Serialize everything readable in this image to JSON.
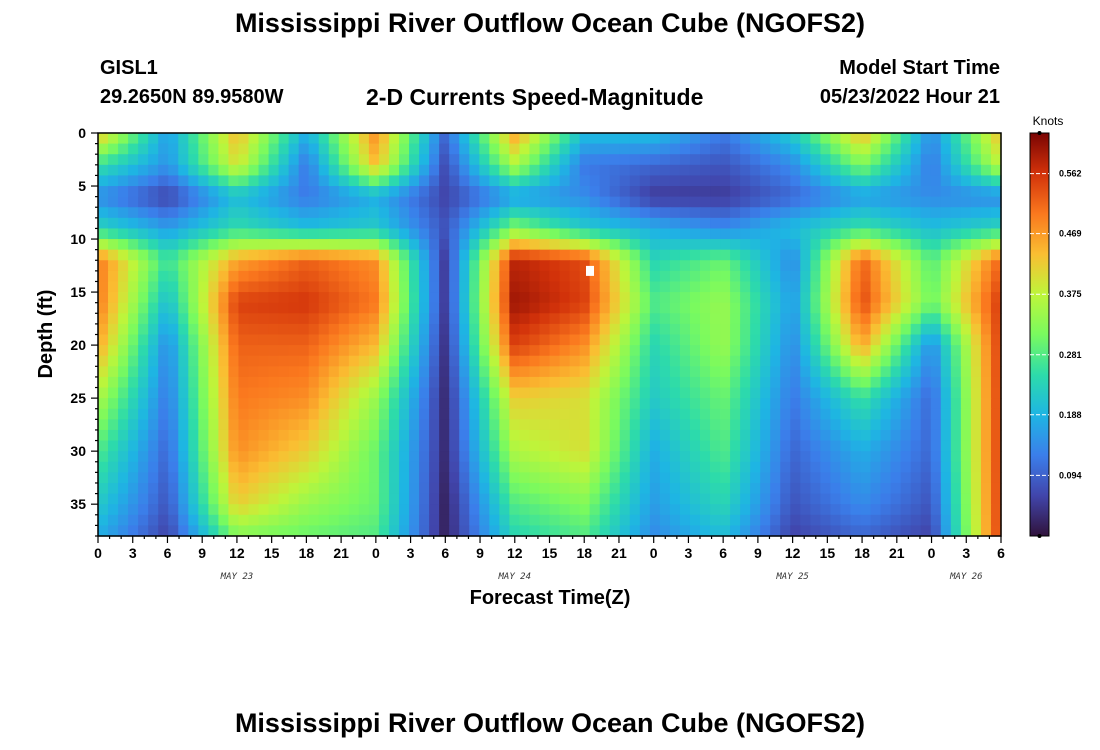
{
  "header": {
    "title": "Mississippi River Outflow Ocean Cube (NGOFS2)",
    "station_id": "GISL1",
    "station_position": "29.2650N  89.9580W",
    "subtitle": "2-D Currents Speed-Magnitude",
    "model_start_label": "Model Start Time",
    "model_start_value": "05/23/2022 Hour 21"
  },
  "footer": {
    "title": "Mississippi River Outflow Ocean Cube (NGOFS2)"
  },
  "chart_data": {
    "type": "heatmap",
    "title": "2-D Currents Speed-Magnitude",
    "xlabel": "Forecast Time(Z)",
    "ylabel": "Depth (ft)",
    "x_ticks": [
      "0",
      "3",
      "6",
      "9",
      "12",
      "15",
      "18",
      "21",
      "0",
      "3",
      "6",
      "9",
      "12",
      "15",
      "18",
      "21",
      "0",
      "3",
      "6",
      "9",
      "12",
      "15",
      "18",
      "21",
      "0",
      "3",
      "6"
    ],
    "x_range_hours": [
      0,
      78
    ],
    "date_labels": [
      {
        "label": "MAY 23",
        "hour": 12
      },
      {
        "label": "MAY 24",
        "hour": 36
      },
      {
        "label": "MAY 25",
        "hour": 60
      },
      {
        "label": "MAY 26",
        "hour": 75
      }
    ],
    "y_ticks": [
      "0",
      "5",
      "10",
      "15",
      "20",
      "25",
      "30",
      "35"
    ],
    "y_range": [
      0,
      38
    ],
    "y_inverted": true,
    "colorbar": {
      "unit": "Knots",
      "ticks": [
        "0.562",
        "0.469",
        "0.375",
        "0.281",
        "0.188",
        "0.094"
      ],
      "tick_values": [
        0.562,
        0.469,
        0.375,
        0.281,
        0.188,
        0.094
      ],
      "range": [
        0,
        0.625
      ],
      "colormap": "turbo"
    },
    "grid": {
      "hours": [
        0,
        6,
        12,
        18,
        24,
        30,
        36,
        42,
        48,
        54,
        60,
        66,
        72,
        78
      ],
      "depths": [
        0,
        3,
        6,
        9,
        12,
        16,
        20,
        25,
        30,
        35,
        38
      ],
      "values": [
        [
          0.44,
          0.16,
          0.44,
          0.18,
          0.48,
          0.1,
          0.46,
          0.2,
          0.2,
          0.12,
          0.22,
          0.44,
          0.14,
          0.44
        ],
        [
          0.26,
          0.15,
          0.4,
          0.12,
          0.44,
          0.07,
          0.36,
          0.12,
          0.1,
          0.08,
          0.14,
          0.32,
          0.12,
          0.38
        ],
        [
          0.14,
          0.06,
          0.2,
          0.12,
          0.18,
          0.06,
          0.16,
          0.14,
          0.05,
          0.05,
          0.1,
          0.16,
          0.14,
          0.14
        ],
        [
          0.24,
          0.16,
          0.25,
          0.2,
          0.22,
          0.08,
          0.32,
          0.22,
          0.18,
          0.14,
          0.2,
          0.26,
          0.2,
          0.24
        ],
        [
          0.5,
          0.26,
          0.46,
          0.52,
          0.48,
          0.05,
          0.58,
          0.54,
          0.24,
          0.3,
          0.14,
          0.52,
          0.28,
          0.52
        ],
        [
          0.5,
          0.2,
          0.55,
          0.56,
          0.5,
          0.05,
          0.6,
          0.55,
          0.28,
          0.34,
          0.16,
          0.54,
          0.3,
          0.56
        ],
        [
          0.46,
          0.14,
          0.52,
          0.52,
          0.44,
          0.04,
          0.55,
          0.48,
          0.24,
          0.34,
          0.14,
          0.46,
          0.14,
          0.56
        ],
        [
          0.36,
          0.12,
          0.5,
          0.48,
          0.34,
          0.03,
          0.42,
          0.4,
          0.22,
          0.3,
          0.12,
          0.26,
          0.1,
          0.56
        ],
        [
          0.28,
          0.1,
          0.48,
          0.42,
          0.3,
          0.03,
          0.36,
          0.4,
          0.18,
          0.28,
          0.1,
          0.18,
          0.1,
          0.56
        ],
        [
          0.22,
          0.08,
          0.42,
          0.34,
          0.3,
          0.02,
          0.28,
          0.32,
          0.16,
          0.24,
          0.08,
          0.14,
          0.08,
          0.56
        ],
        [
          0.18,
          0.06,
          0.32,
          0.3,
          0.28,
          0.02,
          0.24,
          0.28,
          0.14,
          0.2,
          0.06,
          0.1,
          0.06,
          0.56
        ]
      ]
    },
    "marker": {
      "hour": 42.5,
      "depth": 13,
      "color": "#ffffff"
    }
  }
}
